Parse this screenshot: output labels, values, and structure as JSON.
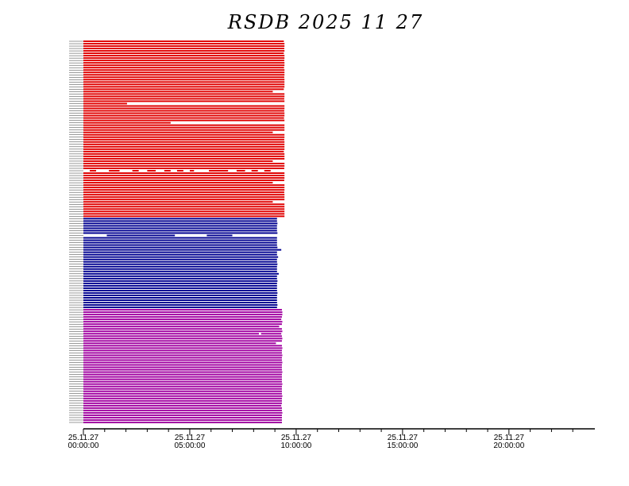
{
  "chart_data": {
    "type": "availability",
    "title": "RSDB  2025  11  27",
    "xlim": [
      0,
      24
    ],
    "xticks": [
      {
        "value": 0,
        "label": [
          "25.11.27",
          "00:00:00"
        ]
      },
      {
        "value": 5,
        "label": [
          "25.11.27",
          "05:00:00"
        ]
      },
      {
        "value": 10,
        "label": [
          "25.11.27",
          "10:00:00"
        ]
      },
      {
        "value": 15,
        "label": [
          "25.11.27",
          "15:00:00"
        ]
      },
      {
        "value": 20,
        "label": [
          "25.11.27",
          "20:00:00"
        ]
      }
    ],
    "xminor_ticks": [
      1,
      2,
      3,
      4,
      6,
      7,
      8,
      9,
      11,
      12,
      13,
      14,
      16,
      17,
      18,
      19,
      21,
      22,
      23
    ],
    "groups": [
      {
        "color": "#e00000",
        "rows": [
          [
            [
              0,
              9.42
            ]
          ],
          [
            [
              0,
              9.45
            ]
          ],
          [
            [
              0,
              9.45
            ]
          ],
          [
            [
              0,
              9.44
            ]
          ],
          [
            [
              0,
              9.45
            ]
          ],
          [
            [
              0,
              9.42
            ]
          ],
          [
            [
              0,
              9.45
            ]
          ],
          [
            [
              0,
              9.45
            ]
          ],
          [
            [
              0,
              9.44
            ]
          ],
          [
            [
              0,
              9.45
            ]
          ],
          [
            [
              0,
              9.45
            ]
          ],
          [
            [
              0,
              9.43
            ]
          ],
          [
            [
              0,
              9.45
            ]
          ],
          [
            [
              0,
              9.45
            ]
          ],
          [
            [
              0,
              9.45
            ]
          ],
          [
            [
              0,
              9.44
            ]
          ],
          [
            [
              0,
              9.45
            ]
          ],
          [
            [
              0,
              9.45
            ]
          ],
          [
            [
              0,
              9.45
            ]
          ],
          [
            [
              0,
              9.45
            ]
          ],
          [
            [
              0,
              9.42
            ]
          ],
          [
            [
              0,
              8.9
            ]
          ],
          [
            [
              0,
              9.45
            ]
          ],
          [
            [
              0,
              9.45
            ]
          ],
          [
            [
              0,
              9.44
            ]
          ],
          [
            [
              0,
              9.45
            ]
          ],
          [
            [
              0,
              2.05
            ]
          ],
          [
            [
              0,
              9.45
            ]
          ],
          [
            [
              0,
              9.45
            ]
          ],
          [
            [
              0,
              9.44
            ]
          ],
          [
            [
              0,
              9.45
            ]
          ],
          [
            [
              0,
              9.45
            ]
          ],
          [
            [
              0,
              9.43
            ]
          ],
          [
            [
              0,
              9.45
            ]
          ],
          [
            [
              0,
              4.1
            ]
          ],
          [
            [
              0,
              9.45
            ]
          ],
          [
            [
              0,
              9.45
            ]
          ],
          [
            [
              0,
              9.45
            ]
          ],
          [
            [
              0,
              8.9
            ]
          ],
          [
            [
              0,
              9.45
            ]
          ],
          [
            [
              0,
              9.45
            ]
          ],
          [
            [
              0,
              9.44
            ]
          ],
          [
            [
              0,
              9.45
            ]
          ],
          [
            [
              0,
              9.45
            ]
          ],
          [
            [
              0,
              9.45
            ]
          ],
          [
            [
              0,
              9.45
            ]
          ],
          [
            [
              0,
              9.42
            ]
          ],
          [
            [
              0,
              9.45
            ]
          ],
          [
            [
              0,
              9.45
            ]
          ],
          [
            [
              0,
              9.45
            ]
          ],
          [
            [
              0,
              8.9
            ]
          ],
          [
            [
              0,
              9.45
            ]
          ],
          [
            [
              0,
              9.45
            ]
          ],
          [
            [
              0,
              9.44
            ]
          ],
          [
            [
              0.3,
              0.6
            ],
            [
              1.2,
              1.7
            ],
            [
              2.3,
              2.6
            ],
            [
              3.0,
              3.4
            ],
            [
              3.8,
              4.1
            ],
            [
              4.4,
              4.7
            ],
            [
              5.0,
              5.2
            ],
            [
              5.9,
              6.8
            ],
            [
              7.2,
              7.6
            ],
            [
              7.9,
              8.2
            ],
            [
              8.5,
              8.8
            ]
          ],
          [
            [
              0,
              9.45
            ]
          ],
          [
            [
              0,
              9.45
            ]
          ],
          [
            [
              0,
              9.45
            ]
          ],
          [
            [
              0,
              9.44
            ]
          ],
          [
            [
              0,
              8.9
            ]
          ],
          [
            [
              0,
              9.45
            ]
          ],
          [
            [
              0,
              9.45
            ]
          ],
          [
            [
              0,
              9.45
            ]
          ],
          [
            [
              0,
              9.44
            ]
          ],
          [
            [
              0,
              9.45
            ]
          ],
          [
            [
              0,
              9.45
            ]
          ],
          [
            [
              0,
              9.45
            ]
          ],
          [
            [
              0,
              8.9
            ]
          ],
          [
            [
              0,
              9.45
            ]
          ],
          [
            [
              0,
              9.45
            ]
          ],
          [
            [
              0,
              9.45
            ]
          ],
          [
            [
              0,
              9.45
            ]
          ],
          [
            [
              0,
              9.45
            ]
          ],
          [
            [
              0,
              9.45
            ]
          ]
        ]
      },
      {
        "color": "#000090",
        "rows": [
          [
            [
              0,
              9.1
            ]
          ],
          [
            [
              0,
              9.1
            ]
          ],
          [
            [
              0,
              9.12
            ]
          ],
          [
            [
              0,
              9.1
            ]
          ],
          [
            [
              0,
              9.1
            ]
          ],
          [
            [
              0,
              9.1
            ]
          ],
          [
            [
              0,
              9.12
            ]
          ],
          [
            [
              1.1,
              4.3
            ],
            [
              5.8,
              7.0
            ]
          ],
          [
            [
              0,
              9.1
            ]
          ],
          [
            [
              0,
              9.1
            ]
          ],
          [
            [
              0,
              9.1
            ]
          ],
          [
            [
              0,
              9.1
            ]
          ],
          [
            [
              0,
              9.12
            ]
          ],
          [
            [
              0,
              9.3
            ]
          ],
          [
            [
              0,
              9.1
            ]
          ],
          [
            [
              0,
              9.1
            ]
          ],
          [
            [
              0,
              9.15
            ]
          ],
          [
            [
              0,
              9.1
            ]
          ],
          [
            [
              0,
              9.1
            ]
          ],
          [
            [
              0,
              9.12
            ]
          ],
          [
            [
              0,
              9.1
            ]
          ],
          [
            [
              0,
              9.1
            ]
          ],
          [
            [
              0,
              9.1
            ]
          ],
          [
            [
              0,
              9.18
            ]
          ],
          [
            [
              0,
              9.1
            ]
          ],
          [
            [
              0,
              9.1
            ]
          ],
          [
            [
              0,
              9.12
            ]
          ],
          [
            [
              0,
              9.1
            ]
          ],
          [
            [
              0,
              9.1
            ]
          ],
          [
            [
              0,
              9.1
            ]
          ],
          [
            [
              0,
              9.1
            ]
          ],
          [
            [
              0,
              9.12
            ]
          ],
          [
            [
              0,
              9.1
            ]
          ],
          [
            [
              0,
              9.1
            ]
          ],
          [
            [
              0,
              9.1
            ]
          ],
          [
            [
              0,
              9.1
            ]
          ],
          [
            [
              0,
              9.12
            ]
          ],
          [
            [
              0,
              9.1
            ]
          ]
        ]
      },
      {
        "color": "#a000a0",
        "rows": [
          [
            [
              0,
              9.33
            ]
          ],
          [
            [
              0,
              9.35
            ]
          ],
          [
            [
              0,
              9.35
            ]
          ],
          [
            [
              0,
              9.33
            ]
          ],
          [
            [
              0,
              9.3
            ]
          ],
          [
            [
              0,
              9.35
            ]
          ],
          [
            [
              0,
              9.33
            ]
          ],
          [
            [
              0,
              9.2
            ]
          ],
          [
            [
              0,
              9.33
            ]
          ],
          [
            [
              0,
              9.35
            ]
          ],
          [
            [
              0,
              8.25
            ],
            [
              8.35,
              9.3
            ]
          ],
          [
            [
              0,
              9.33
            ]
          ],
          [
            [
              0,
              9.35
            ]
          ],
          [
            [
              0,
              9.33
            ]
          ],
          [
            [
              0,
              9.05
            ]
          ],
          [
            [
              0,
              9.33
            ]
          ],
          [
            [
              0,
              9.35
            ]
          ],
          [
            [
              0,
              9.33
            ]
          ],
          [
            [
              0,
              9.33
            ]
          ],
          [
            [
              0,
              9.35
            ]
          ],
          [
            [
              0,
              9.33
            ]
          ],
          [
            [
              0,
              9.33
            ]
          ],
          [
            [
              0,
              9.35
            ]
          ],
          [
            [
              0,
              9.33
            ]
          ],
          [
            [
              0,
              9.33
            ]
          ],
          [
            [
              0,
              9.33
            ]
          ],
          [
            [
              0,
              9.35
            ]
          ],
          [
            [
              0,
              9.33
            ]
          ],
          [
            [
              0,
              9.33
            ]
          ],
          [
            [
              0,
              9.33
            ]
          ],
          [
            [
              0,
              9.33
            ]
          ],
          [
            [
              0,
              9.35
            ]
          ],
          [
            [
              0,
              9.33
            ]
          ],
          [
            [
              0,
              9.33
            ]
          ],
          [
            [
              0,
              9.33
            ]
          ],
          [
            [
              0,
              9.33
            ]
          ],
          [
            [
              0,
              9.35
            ]
          ],
          [
            [
              0,
              9.33
            ]
          ],
          [
            [
              0,
              9.33
            ]
          ],
          [
            [
              0,
              9.33
            ]
          ],
          [
            [
              0,
              9.3
            ]
          ],
          [
            [
              0,
              9.33
            ]
          ],
          [
            [
              0,
              9.33
            ]
          ],
          [
            [
              0,
              9.35
            ]
          ],
          [
            [
              0,
              9.33
            ]
          ],
          [
            [
              0,
              9.33
            ]
          ],
          [
            [
              0,
              9.33
            ]
          ],
          [
            [
              0,
              9.33
            ]
          ]
        ]
      }
    ]
  }
}
